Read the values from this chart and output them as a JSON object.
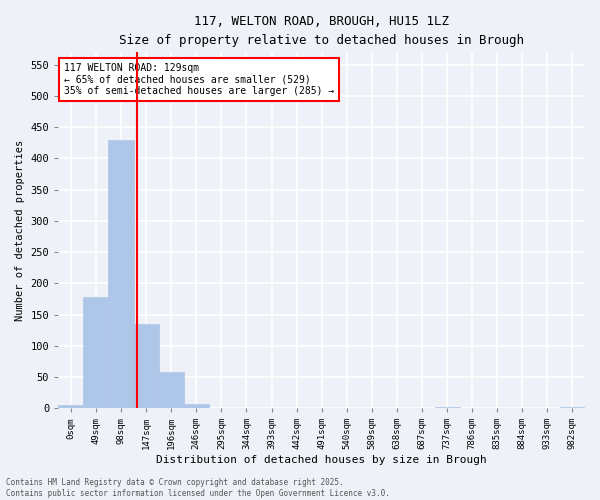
{
  "title_line1": "117, WELTON ROAD, BROUGH, HU15 1LZ",
  "title_line2": "Size of property relative to detached houses in Brough",
  "xlabel": "Distribution of detached houses by size in Brough",
  "ylabel": "Number of detached properties",
  "bar_labels": [
    "0sqm",
    "49sqm",
    "98sqm",
    "147sqm",
    "196sqm",
    "246sqm",
    "295sqm",
    "344sqm",
    "393sqm",
    "442sqm",
    "491sqm",
    "540sqm",
    "589sqm",
    "638sqm",
    "687sqm",
    "737sqm",
    "786sqm",
    "835sqm",
    "884sqm",
    "933sqm",
    "982sqm"
  ],
  "bar_values": [
    5,
    178,
    430,
    135,
    58,
    7,
    0,
    0,
    0,
    0,
    0,
    0,
    0,
    0,
    0,
    2,
    0,
    0,
    0,
    0,
    2
  ],
  "bar_color": "#aec6e8",
  "bar_edgecolor": "#aec6e8",
  "vline_x": 2.65,
  "vline_color": "red",
  "annotation_text": "117 WELTON ROAD: 129sqm\n← 65% of detached houses are smaller (529)\n35% of semi-detached houses are larger (285) →",
  "annotation_bbox_color": "white",
  "annotation_bbox_edgecolor": "red",
  "ylim": [
    0,
    570
  ],
  "yticks": [
    0,
    50,
    100,
    150,
    200,
    250,
    300,
    350,
    400,
    450,
    500,
    550
  ],
  "footer": "Contains HM Land Registry data © Crown copyright and database right 2025.\nContains public sector information licensed under the Open Government Licence v3.0.",
  "background_color": "#eef2f8",
  "grid_color": "white"
}
